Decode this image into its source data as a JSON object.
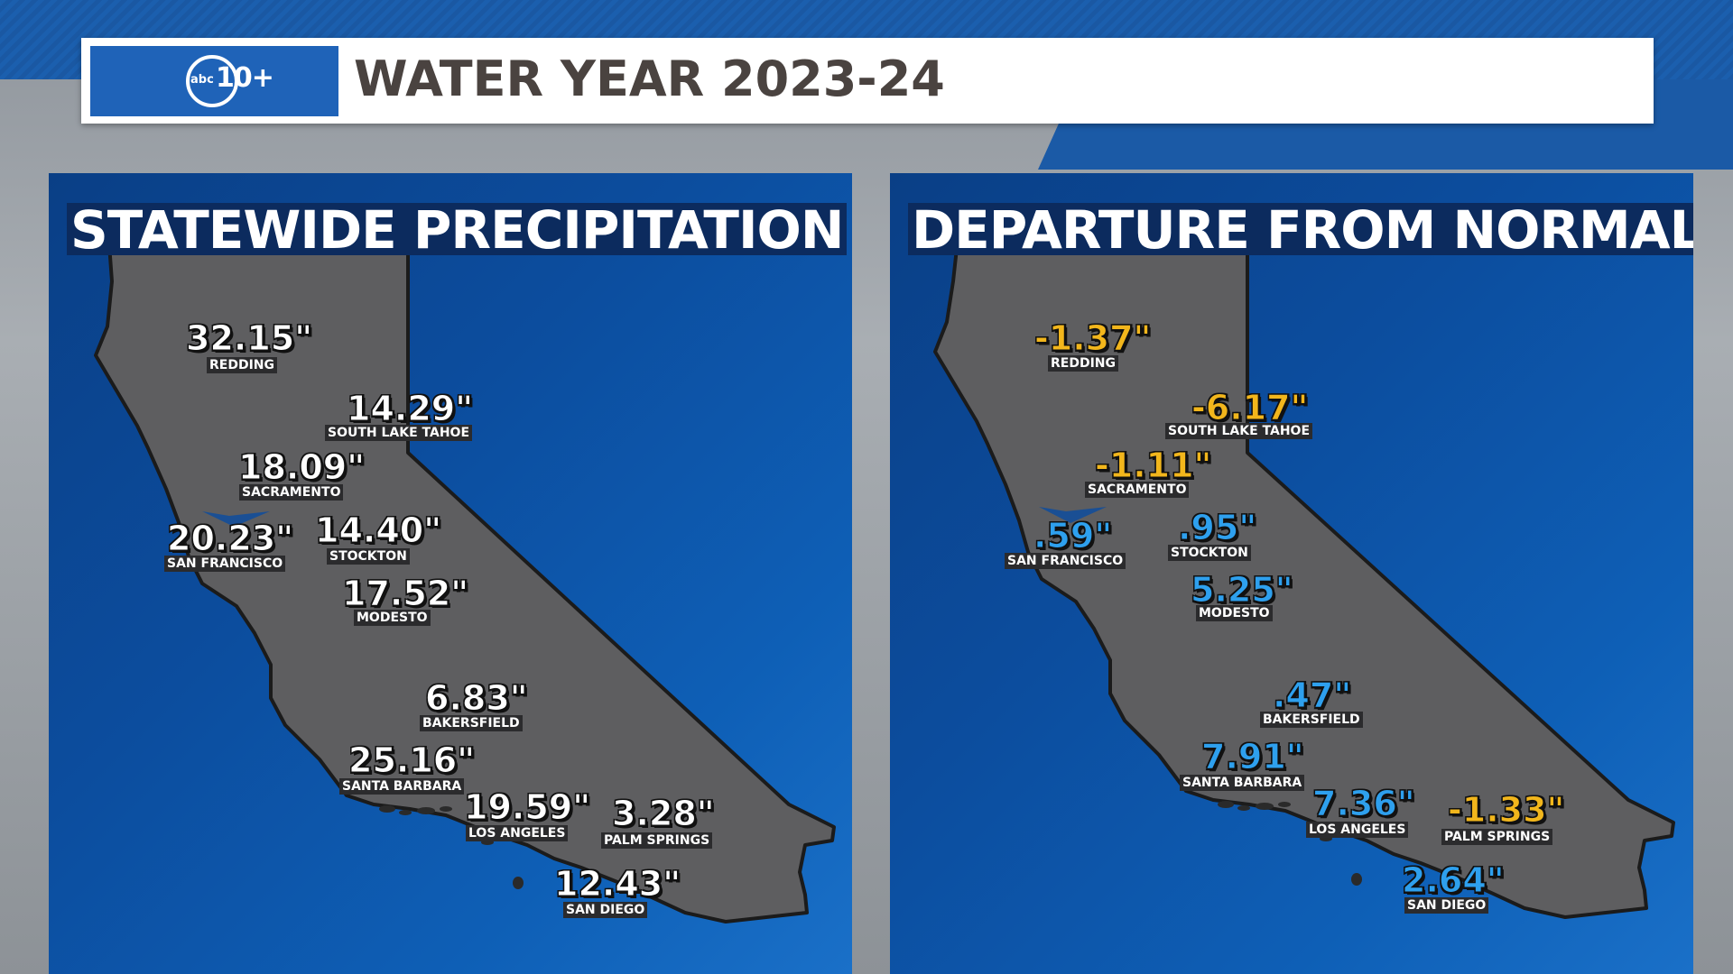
{
  "header": {
    "title": "WATER YEAR 2023-24",
    "logo_text": "abc",
    "logo_number": "10+"
  },
  "left_panel": {
    "title": "STATEWIDE PRECIPITATION",
    "stations": [
      {
        "city": "REDDING",
        "value": "32.15\"",
        "color": "#ffffff"
      },
      {
        "city": "SOUTH LAKE TAHOE",
        "value": "14.29\"",
        "color": "#ffffff"
      },
      {
        "city": "SACRAMENTO",
        "value": "18.09\"",
        "color": "#ffffff"
      },
      {
        "city": "SAN FRANCISCO",
        "value": "20.23\"",
        "color": "#ffffff"
      },
      {
        "city": "STOCKTON",
        "value": "14.40\"",
        "color": "#ffffff"
      },
      {
        "city": "MODESTO",
        "value": "17.52\"",
        "color": "#ffffff"
      },
      {
        "city": "BAKERSFIELD",
        "value": "6.83\"",
        "color": "#ffffff"
      },
      {
        "city": "SANTA BARBARA",
        "value": "25.16\"",
        "color": "#ffffff"
      },
      {
        "city": "LOS ANGELES",
        "value": "19.59\"",
        "color": "#ffffff"
      },
      {
        "city": "PALM SPRINGS",
        "value": "3.28\"",
        "color": "#ffffff"
      },
      {
        "city": "SAN DIEGO",
        "value": "12.43\"",
        "color": "#ffffff"
      }
    ]
  },
  "right_panel": {
    "title": "DEPARTURE FROM NORMAL",
    "stations": [
      {
        "city": "REDDING",
        "value": "-1.37\"",
        "color": "#f2b61c"
      },
      {
        "city": "SOUTH LAKE TAHOE",
        "value": "-6.17\"",
        "color": "#f2b61c"
      },
      {
        "city": "SACRAMENTO",
        "value": "-1.11\"",
        "color": "#f2b61c"
      },
      {
        "city": "SAN FRANCISCO",
        "value": ".59\"",
        "color": "#2ea0ee"
      },
      {
        "city": "STOCKTON",
        "value": ".95\"",
        "color": "#2ea0ee"
      },
      {
        "city": "MODESTO",
        "value": "5.25\"",
        "color": "#2ea0ee"
      },
      {
        "city": "BAKERSFIELD",
        "value": ".47\"",
        "color": "#2ea0ee"
      },
      {
        "city": "SANTA BARBARA",
        "value": "7.91\"",
        "color": "#2ea0ee"
      },
      {
        "city": "LOS ANGELES",
        "value": "7.36\"",
        "color": "#2ea0ee"
      },
      {
        "city": "PALM SPRINGS",
        "value": "-1.33\"",
        "color": "#f2b61c"
      },
      {
        "city": "SAN DIEGO",
        "value": "2.64\"",
        "color": "#2ea0ee"
      }
    ]
  }
}
